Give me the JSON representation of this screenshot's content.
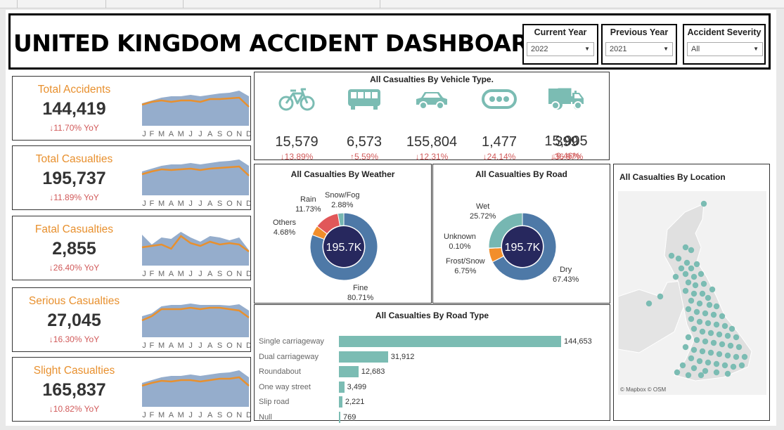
{
  "title": "UNITED KINGDOM ACCIDENT DASHBOARD",
  "filters": [
    {
      "label": "Current Year",
      "value": "2022"
    },
    {
      "label": "Previous Year",
      "value": "2021"
    },
    {
      "label": "Accident Severity",
      "value": "All"
    }
  ],
  "months": [
    "J",
    "F",
    "M",
    "A",
    "M",
    "J",
    "J",
    "A",
    "S",
    "O",
    "N",
    "D"
  ],
  "kpis": [
    {
      "label": "Total Accidents",
      "value": "144,419",
      "yoy": "↓11.70% YoY",
      "current": [
        62,
        66,
        70,
        72,
        72,
        74,
        72,
        74,
        76,
        77,
        80,
        72
      ],
      "previous": [
        60,
        64,
        66,
        64,
        66,
        66,
        64,
        68,
        68,
        69,
        70,
        57
      ]
    },
    {
      "label": "Total Casualties",
      "value": "195,737",
      "yoy": "↓11.89% YoY",
      "current": [
        64,
        68,
        72,
        74,
        74,
        76,
        74,
        76,
        78,
        79,
        81,
        72
      ],
      "previous": [
        60,
        64,
        67,
        66,
        67,
        68,
        66,
        68,
        69,
        70,
        71,
        58
      ]
    },
    {
      "label": "Fatal Casualties",
      "value": "2,855",
      "yoy": "↓26.40% YoY",
      "current": [
        74,
        60,
        70,
        68,
        78,
        70,
        64,
        72,
        70,
        66,
        70,
        52
      ],
      "previous": [
        56,
        58,
        60,
        54,
        72,
        62,
        58,
        64,
        60,
        62,
        60,
        50
      ]
    },
    {
      "label": "Serious Casualties",
      "value": "27,045",
      "yoy": "↓16.30% YoY",
      "current": [
        60,
        64,
        74,
        76,
        76,
        78,
        76,
        76,
        76,
        75,
        77,
        68
      ],
      "previous": [
        54,
        60,
        70,
        70,
        70,
        72,
        70,
        72,
        72,
        70,
        68,
        58
      ]
    },
    {
      "label": "Slight Casualties",
      "value": "165,837",
      "yoy": "↓10.82% YoY",
      "current": [
        64,
        68,
        72,
        74,
        74,
        76,
        74,
        76,
        78,
        79,
        82,
        72
      ],
      "previous": [
        60,
        64,
        67,
        66,
        68,
        68,
        66,
        68,
        70,
        70,
        72,
        60
      ]
    }
  ],
  "vehicles": {
    "title": "All Casualties By Vehicle Type.",
    "items": [
      {
        "icon": "bicycle-icon",
        "value": "15,579",
        "change": "↓13.89%"
      },
      {
        "icon": "bus-icon",
        "value": "6,573",
        "change": "↑5.59%"
      },
      {
        "icon": "car-icon",
        "value": "155,804",
        "change": "↓12.31%"
      },
      {
        "icon": "other-vehicle-icon",
        "value": "1,477",
        "change": "↓24.14%"
      },
      {
        "icon": "tractor-icon",
        "value": "399",
        "change": "↓36.97%"
      },
      {
        "icon": "truck-icon",
        "value": "15,905",
        "change": "↓9.46%"
      }
    ]
  },
  "weather": {
    "title": "All Casualties By Weather",
    "center": "195.7K",
    "slices": [
      {
        "name": "Fine",
        "pct": "80.71%",
        "value": 80.71,
        "color": "#4e79a7"
      },
      {
        "name": "Others",
        "pct": "4.68%",
        "value": 4.68,
        "color": "#f28e2b"
      },
      {
        "name": "Rain",
        "pct": "11.73%",
        "value": 11.73,
        "color": "#e15759"
      },
      {
        "name": "Snow/Fog",
        "pct": "2.88%",
        "value": 2.88,
        "color": "#76b7b2"
      }
    ]
  },
  "road": {
    "title": "All Casualties By Road",
    "center": "195.7K",
    "slices": [
      {
        "name": "Dry",
        "pct": "67.43%",
        "value": 67.43,
        "color": "#4e79a7"
      },
      {
        "name": "Frost/Snow",
        "pct": "6.75%",
        "value": 6.75,
        "color": "#f28e2b"
      },
      {
        "name": "Unknown",
        "pct": "0.10%",
        "value": 0.1,
        "color": "#e15759"
      },
      {
        "name": "Wet",
        "pct": "25.72%",
        "value": 25.72,
        "color": "#76b7b2"
      }
    ]
  },
  "road_type": {
    "title": "All Casualties By Road Type",
    "items": [
      {
        "name": "Single carriageway",
        "value": 144653,
        "label": "144,653"
      },
      {
        "name": "Dual carriageway",
        "value": 31912,
        "label": "31,912"
      },
      {
        "name": "Roundabout",
        "value": 12683,
        "label": "12,683"
      },
      {
        "name": "One way street",
        "value": 3499,
        "label": "3,499"
      },
      {
        "name": "Slip road",
        "value": 2221,
        "label": "2,221"
      },
      {
        "name": "Null",
        "value": 769,
        "label": "769"
      }
    ]
  },
  "location": {
    "title": "All Casualties By Location",
    "attribution": "© Mapbox © OSM"
  },
  "colors": {
    "accent": "#e8902e",
    "area": "#8aa4c7",
    "line": "#e8902e",
    "negative": "#d15a5a",
    "teal": "#7bbcb3",
    "donut_center": "#27285e"
  },
  "chart_data": [
    {
      "type": "line",
      "title": "Total Accidents",
      "x": [
        "J",
        "F",
        "M",
        "A",
        "M",
        "J",
        "J",
        "A",
        "S",
        "O",
        "N",
        "D"
      ],
      "series": [
        {
          "values": [
            62,
            66,
            70,
            72,
            72,
            74,
            72,
            74,
            76,
            77,
            80,
            72
          ]
        },
        {
          "values": [
            60,
            64,
            66,
            64,
            66,
            66,
            64,
            68,
            68,
            69,
            70,
            57
          ]
        }
      ]
    },
    {
      "type": "pie",
      "title": "All Casualties By Weather",
      "categories": [
        "Fine",
        "Others",
        "Rain",
        "Snow/Fog"
      ],
      "values": [
        80.71,
        4.68,
        11.73,
        2.88
      ]
    },
    {
      "type": "pie",
      "title": "All Casualties By Road",
      "categories": [
        "Dry",
        "Frost/Snow",
        "Unknown",
        "Wet"
      ],
      "values": [
        67.43,
        6.75,
        0.1,
        25.72
      ]
    },
    {
      "type": "bar",
      "title": "All Casualties By Road Type",
      "categories": [
        "Single carriageway",
        "Dual carriageway",
        "Roundabout",
        "One way street",
        "Slip road",
        "Null"
      ],
      "values": [
        144653,
        31912,
        12683,
        3499,
        2221,
        769
      ]
    }
  ]
}
